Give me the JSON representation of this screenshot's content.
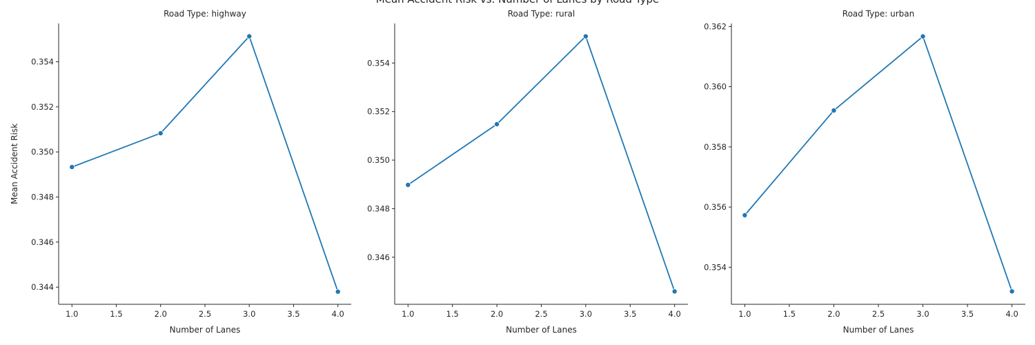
{
  "figure": {
    "suptitle": "Mean Accident Risk vs. Number of Lanes by Road Type"
  },
  "chart_data": [
    {
      "type": "line",
      "title": "Road Type: highway",
      "xlabel": "Number of Lanes",
      "ylabel": "Mean Accident Risk",
      "x": [
        1,
        2,
        3,
        4
      ],
      "series": [
        {
          "values": [
            0.34933,
            0.35083,
            0.35513,
            0.3438
          ]
        }
      ],
      "xticks": [
        1.0,
        1.5,
        2.0,
        2.5,
        3.0,
        3.5,
        4.0
      ],
      "xtick_labels": [
        "1.0",
        "1.5",
        "2.0",
        "2.5",
        "3.0",
        "3.5",
        "4.0"
      ],
      "yticks": [
        0.344,
        0.346,
        0.348,
        0.35,
        0.352,
        0.354
      ],
      "ytick_labels": [
        "0.344",
        "0.346",
        "0.348",
        "0.350",
        "0.352",
        "0.354"
      ],
      "xlim": [
        0.85,
        4.15
      ],
      "ylim": [
        0.34324,
        0.3557
      ],
      "color": "#1f77b4",
      "grid": false
    },
    {
      "type": "line",
      "title": "Road Type: rural",
      "xlabel": "Number of Lanes",
      "ylabel": "",
      "x": [
        1,
        2,
        3,
        4
      ],
      "series": [
        {
          "values": [
            0.34898,
            0.35148,
            0.3551,
            0.34459
          ]
        }
      ],
      "xticks": [
        1.0,
        1.5,
        2.0,
        2.5,
        3.0,
        3.5,
        4.0
      ],
      "xtick_labels": [
        "1.0",
        "1.5",
        "2.0",
        "2.5",
        "3.0",
        "3.5",
        "4.0"
      ],
      "yticks": [
        0.346,
        0.348,
        0.35,
        0.352,
        0.354
      ],
      "ytick_labels": [
        "0.346",
        "0.348",
        "0.350",
        "0.352",
        "0.354"
      ],
      "xlim": [
        0.85,
        4.15
      ],
      "ylim": [
        0.34406,
        0.35563
      ],
      "color": "#1f77b4",
      "grid": false
    },
    {
      "type": "line",
      "title": "Road Type: urban",
      "xlabel": "Number of Lanes",
      "ylabel": "",
      "x": [
        1,
        2,
        3,
        4
      ],
      "series": [
        {
          "values": [
            0.35573,
            0.35921,
            0.36167,
            0.3532
          ]
        }
      ],
      "xticks": [
        1.0,
        1.5,
        2.0,
        2.5,
        3.0,
        3.5,
        4.0
      ],
      "xtick_labels": [
        "1.0",
        "1.5",
        "2.0",
        "2.5",
        "3.0",
        "3.5",
        "4.0"
      ],
      "yticks": [
        0.354,
        0.356,
        0.358,
        0.36,
        0.362
      ],
      "ytick_labels": [
        "0.354",
        "0.356",
        "0.358",
        "0.360",
        "0.362"
      ],
      "xlim": [
        0.85,
        4.15
      ],
      "ylim": [
        0.35277,
        0.3621
      ],
      "color": "#1f77b4",
      "grid": false
    }
  ]
}
